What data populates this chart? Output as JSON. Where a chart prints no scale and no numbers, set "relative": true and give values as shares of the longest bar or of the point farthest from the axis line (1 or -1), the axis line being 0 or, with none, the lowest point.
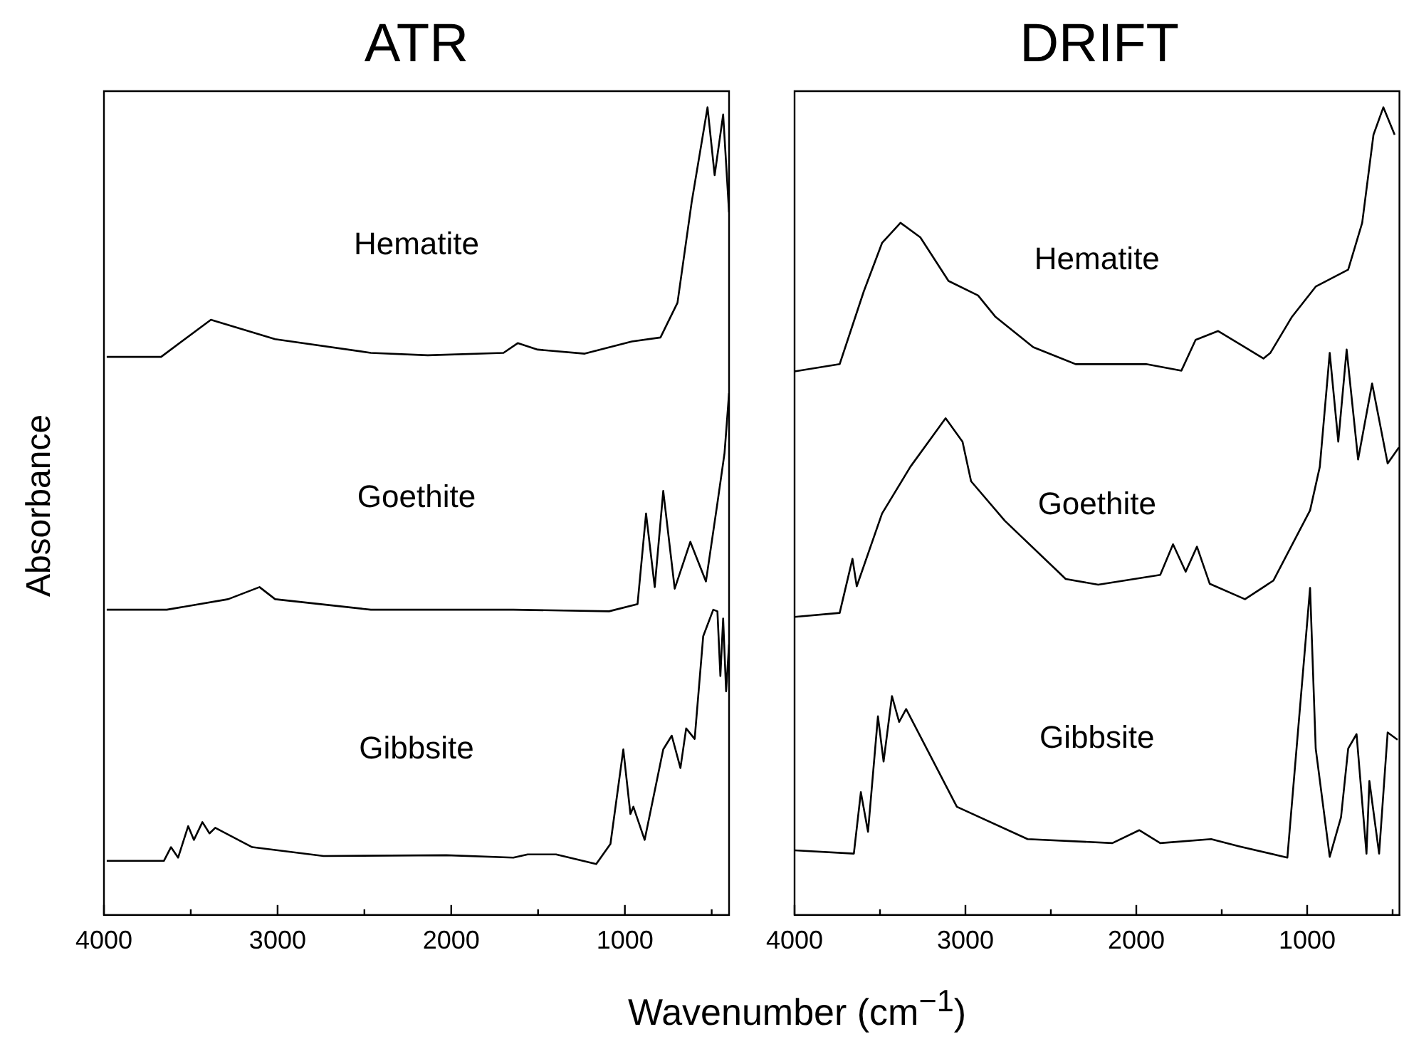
{
  "chart_data": [
    {
      "type": "line",
      "title": "ATR",
      "xlabel": "Wavenumber (cm$^{−1}$)",
      "ylabel": "Absorbance",
      "relative": true,
      "xlim": [
        4000,
        400
      ],
      "xticks": [
        4000,
        {
          "value": 3500,
          "label": null
        },
        3000,
        {
          "value": 2500,
          "label": null
        },
        2000,
        {
          "value": 1500,
          "label": null
        },
        1000,
        {
          "value": 500,
          "label": null
        }
      ],
      "tick_labels": "x",
      "grid": false,
      "legend": false,
      "marker": "none",
      "series": [
        {
          "name": "Hematite",
          "color": "#000000",
          "x": [
            3984,
            3671,
            3384,
            3014,
            2463,
            2135,
            1699,
            1617,
            1502,
            1231,
            960,
            795,
            697,
            615,
            524,
            483,
            434,
            400
          ],
          "values": [
            0.691,
            0.691,
            0.737,
            0.713,
            0.696,
            0.693,
            0.696,
            0.708,
            0.7,
            0.695,
            0.71,
            0.715,
            0.758,
            0.883,
            1.0,
            0.916,
            0.991,
            0.87
          ]
        },
        {
          "name": "Goethite",
          "color": "#000000",
          "x": [
            3984,
            3638,
            3285,
            3104,
            3014,
            2463,
            1642,
            1091,
            927,
            878,
            828,
            779,
            713,
            623,
            533,
            467,
            426,
            400
          ],
          "values": [
            0.378,
            0.378,
            0.391,
            0.406,
            0.391,
            0.378,
            0.378,
            0.376,
            0.385,
            0.497,
            0.406,
            0.525,
            0.404,
            0.462,
            0.413,
            0.51,
            0.572,
            0.646
          ]
        },
        {
          "name": "Gibbsite",
          "color": "#000000",
          "x": [
            3984,
            3655,
            3614,
            3573,
            3515,
            3482,
            3433,
            3392,
            3359,
            3146,
            2735,
            2028,
            1642,
            1560,
            1396,
            1165,
            1083,
            1009,
            968,
            951,
            886,
            779,
            730,
            680,
            647,
            598,
            549,
            491,
            467,
            450,
            434,
            417,
            400
          ],
          "values": [
            0.067,
            0.067,
            0.084,
            0.071,
            0.11,
            0.093,
            0.115,
            0.101,
            0.108,
            0.084,
            0.073,
            0.074,
            0.071,
            0.075,
            0.075,
            0.063,
            0.088,
            0.205,
            0.125,
            0.134,
            0.093,
            0.205,
            0.222,
            0.182,
            0.231,
            0.218,
            0.345,
            0.378,
            0.376,
            0.296,
            0.367,
            0.277,
            0.335
          ]
        }
      ]
    },
    {
      "type": "line",
      "title": "DRIFT",
      "relative": true,
      "xlim": [
        4000,
        460
      ],
      "xticks": [
        4000,
        {
          "value": 3500,
          "label": null
        },
        3000,
        {
          "value": 2500,
          "label": null
        },
        2000,
        {
          "value": 1500,
          "label": null
        },
        1000,
        {
          "value": 500,
          "label": null
        }
      ],
      "tick_labels": "x",
      "grid": false,
      "legend": false,
      "marker": "none",
      "series": [
        {
          "name": "Hematite",
          "color": "#000000",
          "x": [
            4000,
            3736,
            3595,
            3488,
            3380,
            3264,
            3099,
            2926,
            2826,
            2603,
            2355,
            1942,
            1736,
            1653,
            1521,
            1364,
            1256,
            1215,
            1091,
            950,
            760,
            678,
            612,
            554,
            488
          ],
          "values": [
            0.673,
            0.682,
            0.772,
            0.832,
            0.857,
            0.839,
            0.785,
            0.767,
            0.741,
            0.703,
            0.682,
            0.682,
            0.674,
            0.712,
            0.723,
            0.703,
            0.689,
            0.696,
            0.74,
            0.778,
            0.799,
            0.857,
            0.966,
            1.0,
            0.966
          ]
        },
        {
          "name": "Goethite",
          "color": "#000000",
          "x": [
            4000,
            3736,
            3661,
            3636,
            3488,
            3322,
            3116,
            3017,
            2967,
            2769,
            2413,
            2223,
            1860,
            1785,
            1711,
            1645,
            1570,
            1364,
            1198,
            983,
            926,
            868,
            818,
            769,
            702,
            620,
            529,
            463
          ],
          "values": [
            0.369,
            0.374,
            0.441,
            0.407,
            0.497,
            0.555,
            0.615,
            0.586,
            0.537,
            0.488,
            0.416,
            0.409,
            0.421,
            0.459,
            0.425,
            0.456,
            0.41,
            0.391,
            0.414,
            0.501,
            0.555,
            0.696,
            0.586,
            0.7,
            0.564,
            0.658,
            0.559,
            0.579
          ]
        },
        {
          "name": "Gibbsite",
          "color": "#000000",
          "x": [
            4000,
            3653,
            3612,
            3570,
            3512,
            3479,
            3430,
            3388,
            3347,
            3050,
            2636,
            2140,
            1983,
            1860,
            1562,
            1397,
            1116,
            983,
            950,
            868,
            802,
            760,
            711,
            653,
            636,
            579,
            529,
            471
          ],
          "values": [
            0.08,
            0.076,
            0.152,
            0.103,
            0.246,
            0.19,
            0.271,
            0.239,
            0.255,
            0.134,
            0.094,
            0.089,
            0.105,
            0.089,
            0.094,
            0.085,
            0.071,
            0.405,
            0.206,
            0.072,
            0.121,
            0.206,
            0.224,
            0.076,
            0.166,
            0.076,
            0.226,
            0.217
          ]
        }
      ]
    }
  ]
}
